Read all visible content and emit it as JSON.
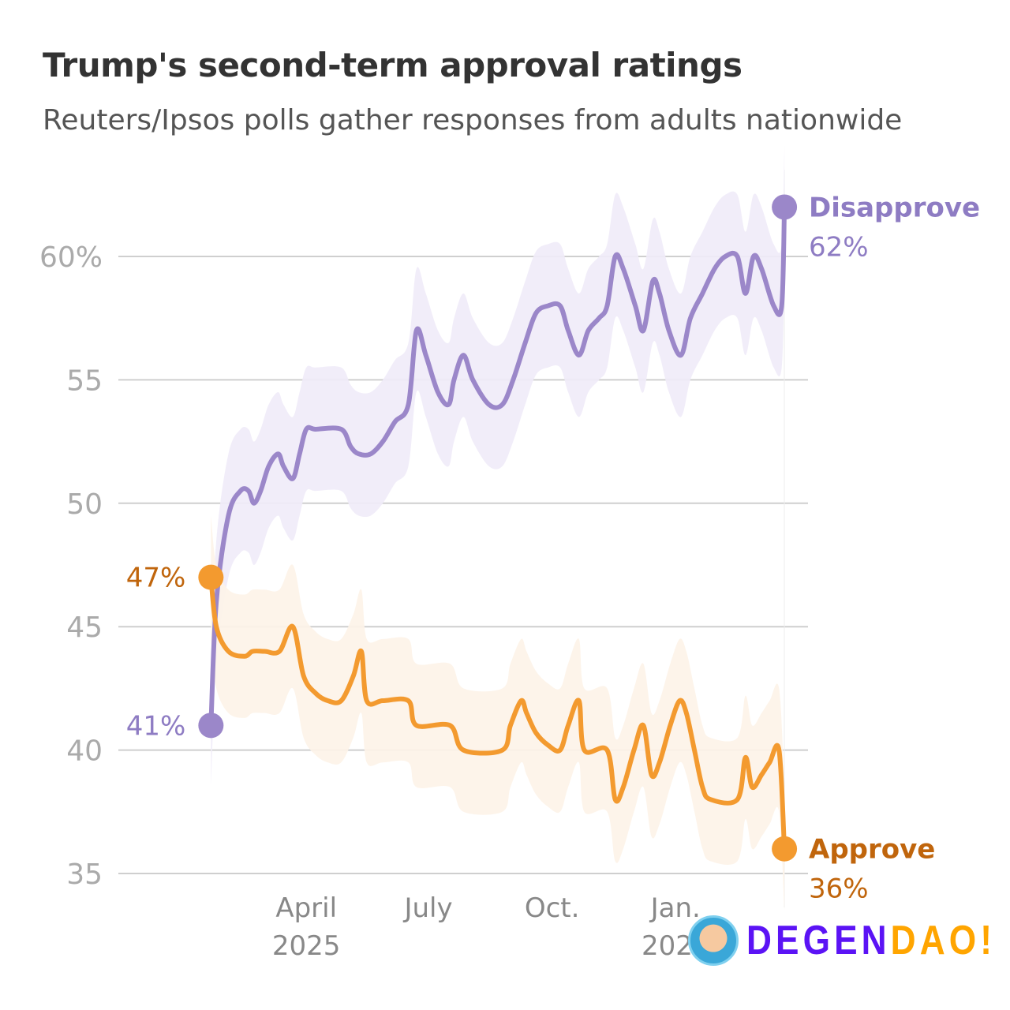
{
  "chart_data": {
    "type": "line",
    "title": "Trump's second-term approval ratings",
    "subtitle": "Reuters/Ipsos polls gather responses from adults nationwide",
    "ylim": [
      35,
      63
    ],
    "y_ticks": [
      {
        "v": 60,
        "label": "60%"
      },
      {
        "v": 55,
        "label": "55"
      },
      {
        "v": 50,
        "label": "50"
      },
      {
        "v": 45,
        "label": "45"
      },
      {
        "v": 40,
        "label": "40"
      },
      {
        "v": 35,
        "label": "35"
      }
    ],
    "x_ticks": [
      {
        "date": "2025-04-01",
        "label": "April",
        "sub": "2025"
      },
      {
        "date": "2025-07-01",
        "label": "July",
        "sub": ""
      },
      {
        "date": "2025-10-01",
        "label": "Oct.",
        "sub": ""
      },
      {
        "date": "2026-01-01",
        "label": "Jan.",
        "sub": "2026"
      }
    ],
    "grid": true,
    "band_margin": 2.5,
    "series": [
      {
        "name": "Disapprove",
        "color": "#9b87c9",
        "band_color": "#efebf8",
        "label_color": "#8e7cc3",
        "start_label": "41%",
        "end_label": "62%",
        "points": [
          [
            "2025-01-20",
            41
          ],
          [
            "2025-01-24",
            46
          ],
          [
            "2025-02-02",
            49.5
          ],
          [
            "2025-02-11",
            50.5
          ],
          [
            "2025-02-17",
            50.5
          ],
          [
            "2025-02-21",
            50
          ],
          [
            "2025-02-26",
            50.5
          ],
          [
            "2025-03-04",
            51.5
          ],
          [
            "2025-03-11",
            52
          ],
          [
            "2025-03-15",
            51.5
          ],
          [
            "2025-03-22",
            51
          ],
          [
            "2025-03-27",
            52
          ],
          [
            "2025-04-01",
            53
          ],
          [
            "2025-04-08",
            53
          ],
          [
            "2025-04-27",
            53
          ],
          [
            "2025-05-04",
            52.3
          ],
          [
            "2025-05-10",
            52
          ],
          [
            "2025-05-19",
            52
          ],
          [
            "2025-05-28",
            52.5
          ],
          [
            "2025-06-06",
            53.3
          ],
          [
            "2025-06-16",
            54
          ],
          [
            "2025-06-22",
            57
          ],
          [
            "2025-06-29",
            56
          ],
          [
            "2025-07-08",
            54.5
          ],
          [
            "2025-07-16",
            54
          ],
          [
            "2025-07-20",
            55
          ],
          [
            "2025-07-27",
            56
          ],
          [
            "2025-08-03",
            55
          ],
          [
            "2025-08-15",
            54
          ],
          [
            "2025-08-25",
            54
          ],
          [
            "2025-09-02",
            55
          ],
          [
            "2025-09-11",
            56.5
          ],
          [
            "2025-09-19",
            57.7
          ],
          [
            "2025-09-28",
            58
          ],
          [
            "2025-10-07",
            58
          ],
          [
            "2025-10-13",
            57
          ],
          [
            "2025-10-21",
            56
          ],
          [
            "2025-10-28",
            57
          ],
          [
            "2025-11-05",
            57.5
          ],
          [
            "2025-11-11",
            58
          ],
          [
            "2025-11-17",
            60
          ],
          [
            "2025-11-23",
            59.5
          ],
          [
            "2025-12-02",
            58
          ],
          [
            "2025-12-08",
            57
          ],
          [
            "2025-12-15",
            59
          ],
          [
            "2025-12-20",
            58.5
          ],
          [
            "2025-12-27",
            57
          ],
          [
            "2026-01-05",
            56
          ],
          [
            "2026-01-12",
            57.5
          ],
          [
            "2026-01-21",
            58.5
          ],
          [
            "2026-01-30",
            59.5
          ],
          [
            "2026-02-07",
            60
          ],
          [
            "2026-02-16",
            60
          ],
          [
            "2026-02-22",
            58.5
          ],
          [
            "2026-02-28",
            60
          ],
          [
            "2026-03-06",
            59.5
          ],
          [
            "2026-03-15",
            58
          ],
          [
            "2026-03-21",
            58
          ],
          [
            "2026-03-23",
            62
          ]
        ]
      },
      {
        "name": "Approve",
        "color": "#f39a2f",
        "band_color": "#fdf3e8",
        "label_color": "#c0650c",
        "start_label": "47%",
        "end_label": "36%",
        "points": [
          [
            "2025-01-20",
            47
          ],
          [
            "2025-01-24",
            45
          ],
          [
            "2025-02-02",
            44
          ],
          [
            "2025-02-14",
            43.8
          ],
          [
            "2025-02-20",
            44
          ],
          [
            "2025-03-01",
            44
          ],
          [
            "2025-03-12",
            44
          ],
          [
            "2025-03-22",
            45
          ],
          [
            "2025-03-30",
            43
          ],
          [
            "2025-04-08",
            42.3
          ],
          [
            "2025-04-17",
            42
          ],
          [
            "2025-04-27",
            42
          ],
          [
            "2025-05-06",
            43
          ],
          [
            "2025-05-12",
            44
          ],
          [
            "2025-05-16",
            42
          ],
          [
            "2025-05-28",
            42
          ],
          [
            "2025-06-16",
            42
          ],
          [
            "2025-06-22",
            41
          ],
          [
            "2025-07-17",
            41
          ],
          [
            "2025-07-27",
            40
          ],
          [
            "2025-08-25",
            40
          ],
          [
            "2025-08-31",
            41
          ],
          [
            "2025-09-08",
            42
          ],
          [
            "2025-09-12",
            41.5
          ],
          [
            "2025-09-19",
            40.7
          ],
          [
            "2025-09-28",
            40.2
          ],
          [
            "2025-10-07",
            40
          ],
          [
            "2025-10-13",
            41
          ],
          [
            "2025-10-21",
            42
          ],
          [
            "2025-10-25",
            40
          ],
          [
            "2025-11-11",
            40
          ],
          [
            "2025-11-17",
            38
          ],
          [
            "2025-11-23",
            38.5
          ],
          [
            "2025-12-01",
            40
          ],
          [
            "2025-12-08",
            41
          ],
          [
            "2025-12-14",
            39
          ],
          [
            "2025-12-20",
            39.5
          ],
          [
            "2025-12-28",
            41
          ],
          [
            "2026-01-04",
            42
          ],
          [
            "2026-01-09",
            41.5
          ],
          [
            "2026-01-15",
            40
          ],
          [
            "2026-01-21",
            38.5
          ],
          [
            "2026-01-27",
            38
          ],
          [
            "2026-02-16",
            38
          ],
          [
            "2026-02-22",
            39.7
          ],
          [
            "2026-02-27",
            38.5
          ],
          [
            "2026-03-06",
            39
          ],
          [
            "2026-03-12",
            39.5
          ],
          [
            "2026-03-19",
            40
          ],
          [
            "2026-03-23",
            36
          ]
        ]
      }
    ]
  },
  "watermark": {
    "part1": "DEGEN",
    "part2": "DAO!"
  }
}
